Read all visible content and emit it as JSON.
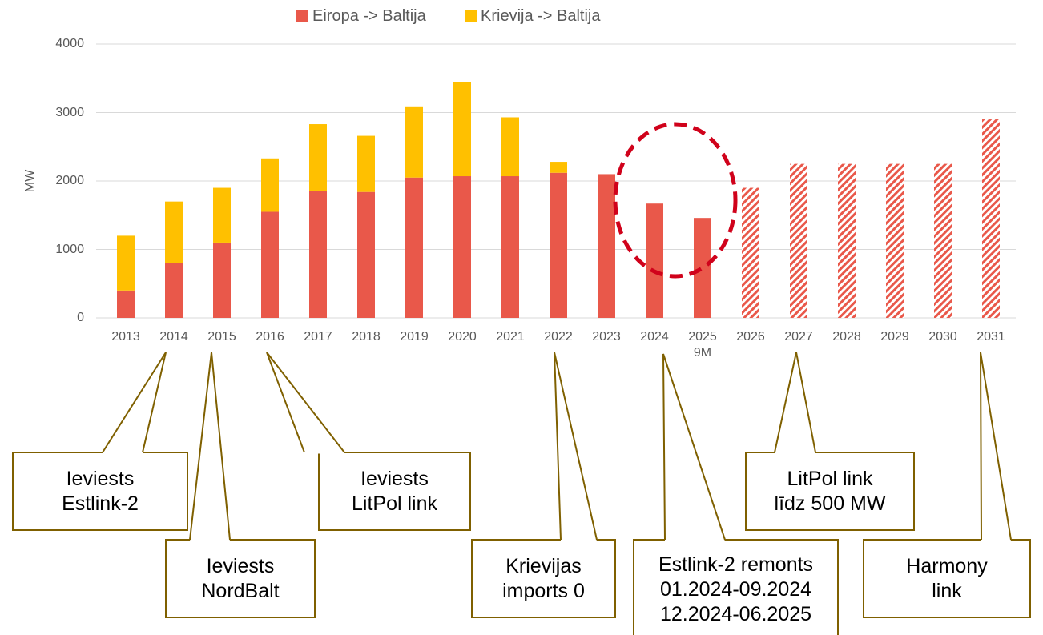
{
  "chart_data": {
    "type": "stacked_bar",
    "y_label": "MW",
    "categories": [
      "2013",
      "2014",
      "2015",
      "2016",
      "2017",
      "2018",
      "2019",
      "2020",
      "2021",
      "2022",
      "2023",
      "2024",
      "2025\n9M",
      "2026",
      "2027",
      "2028",
      "2029",
      "2030",
      "2031"
    ],
    "series": [
      {
        "name": "Eiropa -> Baltija",
        "color": "#e9584a",
        "values": [
          400,
          800,
          1100,
          1550,
          1850,
          1840,
          2050,
          2070,
          2070,
          2120,
          2100,
          1670,
          1460,
          null,
          null,
          null,
          null,
          null,
          null
        ]
      },
      {
        "name": "Krievija -> Baltija",
        "color": "#ffc000",
        "values": [
          800,
          900,
          800,
          780,
          980,
          820,
          1040,
          1380,
          860,
          160,
          null,
          null,
          null,
          null,
          null,
          null,
          null,
          null,
          null
        ]
      },
      {
        "color": "#e9584a",
        "pattern": "hatch",
        "values": [
          null,
          null,
          null,
          null,
          null,
          null,
          null,
          null,
          null,
          null,
          null,
          null,
          null,
          1900,
          2250,
          2250,
          2250,
          2250,
          2900
        ]
      }
    ],
    "ylim": [
      0,
      4000
    ],
    "yticks": [
      0,
      1000,
      2000,
      3000,
      4000
    ],
    "grid": true,
    "legend": "top",
    "callouts": [
      "Ieviests\nEstlink-2",
      "Ieviests\nNordBalt",
      "Ieviests\nLitPol link",
      "Krievijas\nimports 0",
      "Estlink-2 remonts\n01.2024-09.2024\n12.2024-06.2025",
      "LitPol link\nlīdz 500 MW",
      "Harmony\nlink"
    ]
  }
}
